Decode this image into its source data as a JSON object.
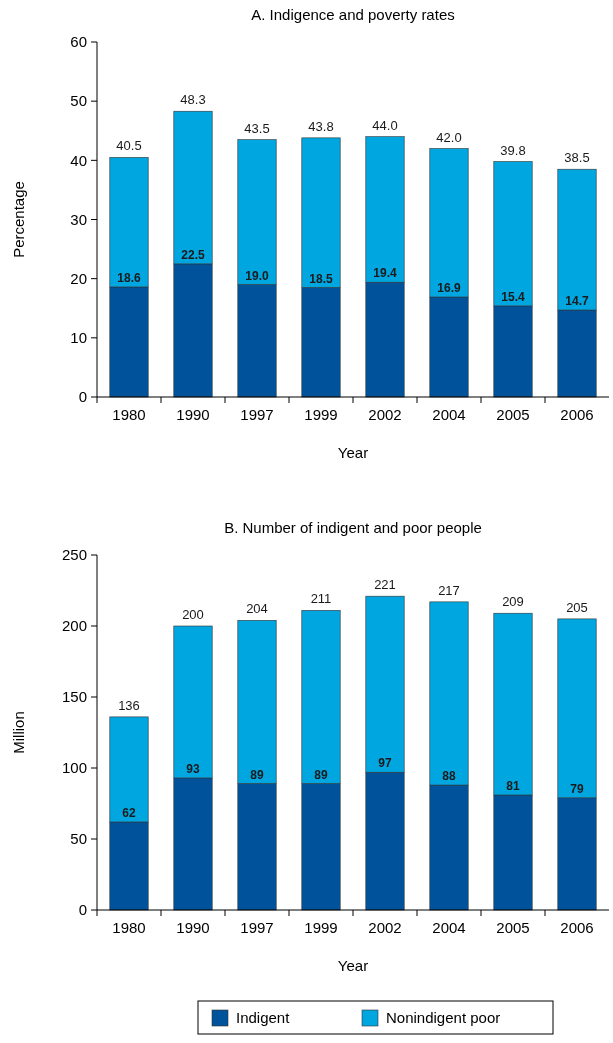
{
  "chart_data": [
    {
      "type": "bar",
      "title": "A. Indigence and poverty rates",
      "xlabel": "Year",
      "ylabel": "Percentage",
      "categories": [
        "1980",
        "1990",
        "1997",
        "1999",
        "2002",
        "2004",
        "2005",
        "2006"
      ],
      "stacked": true,
      "ylim": [
        0,
        60
      ],
      "yticks": [
        0,
        10,
        20,
        30,
        40,
        50,
        60
      ],
      "grid": false,
      "legend": false,
      "series": [
        {
          "color": "#00529b",
          "values": [
            18.6,
            22.5,
            19.0,
            18.5,
            19.4,
            16.9,
            15.4,
            14.7
          ],
          "value_labels": [
            "18.6",
            "22.5",
            "19.0",
            "18.5",
            "19.4",
            "16.9",
            "15.4",
            "14.7"
          ]
        },
        {
          "color": "#00a6e0",
          "values": [
            21.9,
            25.8,
            24.5,
            25.3,
            24.6,
            25.1,
            24.4,
            23.8
          ]
        }
      ],
      "totals": [
        "40.5",
        "48.3",
        "43.5",
        "43.8",
        "44.0",
        "42.0",
        "39.8",
        "38.5"
      ]
    },
    {
      "type": "bar",
      "title": "B. Number of indigent and poor people",
      "xlabel": "Year",
      "ylabel": "Million",
      "categories": [
        "1980",
        "1990",
        "1997",
        "1999",
        "2002",
        "2004",
        "2005",
        "2006"
      ],
      "stacked": true,
      "ylim": [
        0,
        250
      ],
      "yticks": [
        0,
        50,
        100,
        150,
        200,
        250
      ],
      "grid": false,
      "legend": "bottom",
      "series": [
        {
          "name": "Indigent",
          "color": "#00529b",
          "values": [
            62,
            93,
            89,
            89,
            97,
            88,
            81,
            79
          ],
          "value_labels": [
            "62",
            "93",
            "89",
            "89",
            "97",
            "88",
            "81",
            "79"
          ]
        },
        {
          "name": "Nonindigent poor",
          "color": "#00a6e0",
          "values": [
            74,
            107,
            115,
            122,
            124,
            129,
            128,
            126
          ]
        }
      ],
      "totals": [
        "136",
        "200",
        "204",
        "211",
        "221",
        "217",
        "209",
        "205"
      ]
    }
  ]
}
